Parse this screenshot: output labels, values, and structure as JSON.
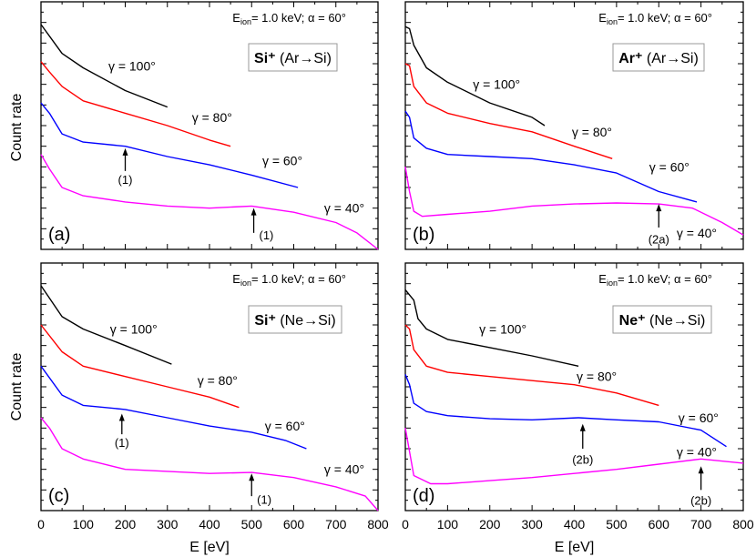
{
  "chart_data": [
    {
      "panel": "(a)",
      "type": "line",
      "header": {
        "pre": "E",
        "sub": "ion",
        "post": "= 1.0 keV; α = 60°"
      },
      "legend_box": {
        "bold": "Si⁺",
        "rest": " (Ar→Si)"
      },
      "xlabel": "",
      "ylabel": "Count rate",
      "xlim": [
        0,
        800
      ],
      "ylim": [
        0,
        12
      ],
      "yscale": "arbitrary (log), no tick labels",
      "xticks": [],
      "series": [
        {
          "name": "γ = 100°",
          "color": "#000000",
          "label_at": [
            216,
            8.9
          ],
          "x": [
            0,
            50,
            100,
            200,
            300
          ],
          "y": [
            10.9,
            9.5,
            8.8,
            7.7,
            6.9
          ]
        },
        {
          "name": "γ = 80°",
          "color": "#ff0000",
          "label_at": [
            406,
            6.4
          ],
          "x": [
            0,
            20,
            50,
            100,
            200,
            300,
            400,
            450
          ],
          "y": [
            9.1,
            8.6,
            7.9,
            7.2,
            6.6,
            6.0,
            5.3,
            5.0
          ]
        },
        {
          "name": "γ = 60°",
          "color": "#0000ff",
          "label_at": [
            573,
            4.3
          ],
          "x": [
            0,
            20,
            50,
            100,
            200,
            300,
            400,
            500,
            610
          ],
          "y": [
            7.1,
            6.6,
            5.6,
            5.2,
            5.0,
            4.5,
            4.1,
            3.6,
            3.0
          ]
        },
        {
          "name": "γ = 40°",
          "color": "#ff00ff",
          "label_at": [
            720,
            2.0
          ],
          "x": [
            0,
            20,
            50,
            100,
            200,
            300,
            400,
            500,
            600,
            700,
            750,
            800
          ],
          "y": [
            4.6,
            3.9,
            3.0,
            2.6,
            2.3,
            2.1,
            2.0,
            2.1,
            1.8,
            1.3,
            0.8,
            0
          ]
        }
      ],
      "annotations": [
        {
          "text": "(1)",
          "x": 200,
          "tip": 4.9,
          "tail": 3.8,
          "label_at": [
            200,
            3.4
          ]
        },
        {
          "text": "(1)",
          "x": 505,
          "tip": 2.0,
          "tail": 0.8,
          "label_at": [
            535,
            0.7
          ]
        }
      ]
    },
    {
      "panel": "(b)",
      "type": "line",
      "header": {
        "pre": "E",
        "sub": "ion",
        "post": "= 1.0 keV; α = 60°"
      },
      "legend_box": {
        "bold": "Ar⁺",
        "rest": " (Ar→Si)"
      },
      "xlabel": "",
      "ylabel": "",
      "xlim": [
        0,
        800
      ],
      "ylim": [
        0,
        12
      ],
      "xticks": [],
      "series": [
        {
          "name": "γ = 100°",
          "color": "#000000",
          "label_at": [
            216,
            8.0
          ],
          "x": [
            0,
            10,
            20,
            50,
            100,
            200,
            300,
            330
          ],
          "y": [
            10.8,
            10.7,
            9.9,
            8.8,
            8.1,
            7.1,
            6.4,
            6.0
          ]
        },
        {
          "name": "γ = 80°",
          "color": "#ff0000",
          "label_at": [
            442,
            5.7
          ],
          "x": [
            0,
            10,
            20,
            50,
            100,
            200,
            300,
            400,
            490
          ],
          "y": [
            9.0,
            8.9,
            7.9,
            7.1,
            6.6,
            6.1,
            5.7,
            5.0,
            4.4
          ]
        },
        {
          "name": "γ = 60°",
          "color": "#0000ff",
          "label_at": [
            625,
            4.0
          ],
          "x": [
            0,
            10,
            20,
            50,
            100,
            200,
            300,
            400,
            500,
            600,
            690
          ],
          "y": [
            6.7,
            6.4,
            5.4,
            4.9,
            4.6,
            4.5,
            4.4,
            4.1,
            3.7,
            2.8,
            2.3
          ]
        },
        {
          "name": "γ = 40°",
          "color": "#ff00ff",
          "label_at": [
            690,
            0.8
          ],
          "x": [
            0,
            10,
            20,
            40,
            100,
            200,
            300,
            400,
            500,
            600,
            680,
            750,
            800
          ],
          "y": [
            4.0,
            2.8,
            1.85,
            1.6,
            1.7,
            1.85,
            2.1,
            2.2,
            2.25,
            2.2,
            2.0,
            1.3,
            0.7
          ]
        }
      ],
      "annotations": [
        {
          "text": "(2a)",
          "x": 600,
          "tip": 2.2,
          "tail": 1.06,
          "label_at": [
            600,
            0.5
          ]
        }
      ]
    },
    {
      "panel": "(c)",
      "type": "line",
      "header": {
        "pre": "E",
        "sub": "ion",
        "post": "= 1.0 keV; α = 60°"
      },
      "legend_box": {
        "bold": "Si⁺",
        "rest": " (Ne→Si)"
      },
      "xlabel": "E [eV]",
      "ylabel": "Count rate",
      "xlim": [
        0,
        800
      ],
      "ylim": [
        0,
        12
      ],
      "xticks": [
        "0",
        "100",
        "200",
        "300",
        "400",
        "500",
        "600",
        "700",
        "800"
      ],
      "series": [
        {
          "name": "γ = 100°",
          "color": "#000000",
          "label_at": [
            220,
            8.8
          ],
          "x": [
            0,
            50,
            100,
            200,
            310
          ],
          "y": [
            10.9,
            9.4,
            8.8,
            8.0,
            7.1
          ]
        },
        {
          "name": "γ = 80°",
          "color": "#ff0000",
          "label_at": [
            419,
            6.3
          ],
          "x": [
            0,
            50,
            100,
            200,
            300,
            400,
            470
          ],
          "y": [
            9.0,
            7.7,
            7.0,
            6.5,
            6.0,
            5.5,
            5.0
          ]
        },
        {
          "name": "γ = 60°",
          "color": "#0000ff",
          "label_at": [
            579,
            4.1
          ],
          "x": [
            0,
            50,
            100,
            200,
            300,
            400,
            500,
            580,
            630
          ],
          "y": [
            7.0,
            5.6,
            5.1,
            4.9,
            4.5,
            4.1,
            3.8,
            3.4,
            3.0
          ]
        },
        {
          "name": "γ = 40°",
          "color": "#ff00ff",
          "label_at": [
            720,
            2.0
          ],
          "x": [
            0,
            20,
            50,
            100,
            200,
            300,
            400,
            500,
            600,
            700,
            770,
            800
          ],
          "y": [
            4.5,
            4.0,
            3.0,
            2.5,
            2.0,
            1.9,
            1.8,
            1.85,
            1.6,
            1.15,
            0.7,
            0
          ]
        }
      ],
      "annotations": [
        {
          "text": "(1)",
          "x": 192,
          "tip": 4.7,
          "tail": 3.7,
          "label_at": [
            192,
            3.3
          ]
        },
        {
          "text": "(1)",
          "x": 500,
          "tip": 1.8,
          "tail": 0.7,
          "label_at": [
            530,
            0.55
          ]
        }
      ]
    },
    {
      "panel": "(d)",
      "type": "line",
      "header": {
        "pre": "E",
        "sub": "ion",
        "post": "= 1.0 keV; α = 60°"
      },
      "legend_box": {
        "bold": "Ne⁺",
        "rest": " (Ne→Si)"
      },
      "xlabel": "E [eV]",
      "ylabel": "",
      "xlim": [
        0,
        800
      ],
      "ylim": [
        0,
        12
      ],
      "xticks": [
        "0",
        "100",
        "200",
        "300",
        "400",
        "500",
        "600",
        "700",
        "800"
      ],
      "series": [
        {
          "name": "γ = 100°",
          "color": "#000000",
          "label_at": [
            231,
            8.8
          ],
          "x": [
            0,
            20,
            30,
            50,
            100,
            200,
            300,
            410
          ],
          "y": [
            10.7,
            10.2,
            9.3,
            8.8,
            8.3,
            7.9,
            7.5,
            7.0
          ]
        },
        {
          "name": "γ = 80°",
          "color": "#ff0000",
          "label_at": [
            453,
            6.5
          ],
          "x": [
            0,
            10,
            20,
            50,
            100,
            200,
            300,
            400,
            500,
            600
          ],
          "y": [
            9.0,
            8.8,
            7.8,
            7.0,
            6.7,
            6.5,
            6.3,
            6.1,
            5.7,
            5.1
          ]
        },
        {
          "name": "γ = 60°",
          "color": "#0000ff",
          "label_at": [
            694,
            4.5
          ],
          "x": [
            0,
            10,
            20,
            50,
            100,
            200,
            300,
            410,
            500,
            600,
            700,
            760
          ],
          "y": [
            6.6,
            6.1,
            5.2,
            4.8,
            4.6,
            4.45,
            4.4,
            4.5,
            4.4,
            4.3,
            3.9,
            3.1
          ]
        },
        {
          "name": "γ = 40°",
          "color": "#ff00ff",
          "label_at": [
            690,
            2.85
          ],
          "x": [
            0,
            20,
            60,
            100,
            200,
            300,
            400,
            500,
            600,
            700,
            800
          ],
          "y": [
            4.0,
            1.7,
            1.3,
            1.3,
            1.45,
            1.6,
            1.8,
            2.0,
            2.25,
            2.5,
            2.3
          ]
        }
      ],
      "annotations": [
        {
          "text": "(2b)",
          "x": 420,
          "tip": 4.2,
          "tail": 3.0,
          "label_at": [
            420,
            2.5
          ]
        },
        {
          "text": "(2b)",
          "x": 700,
          "tip": 2.15,
          "tail": 1.0,
          "label_at": [
            700,
            0.5
          ]
        }
      ]
    }
  ]
}
